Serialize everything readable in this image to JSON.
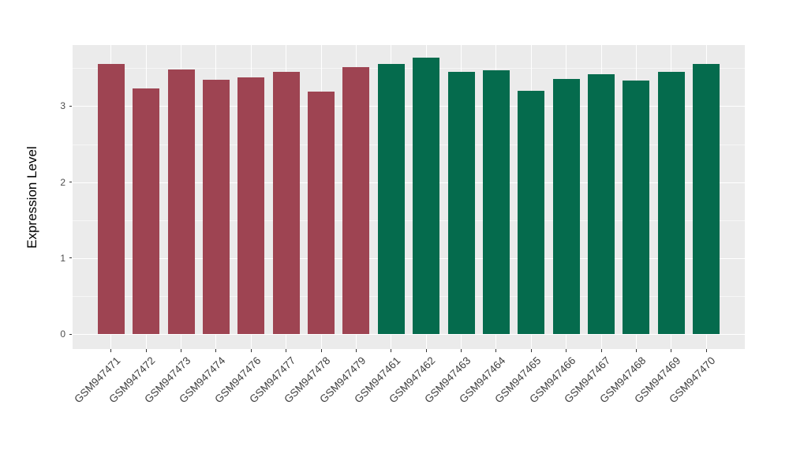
{
  "chart_data": {
    "type": "bar",
    "title": "",
    "xlabel": "",
    "ylabel": "Expression Level",
    "categories": [
      "GSM947471",
      "GSM947472",
      "GSM947473",
      "GSM947474",
      "GSM947476",
      "GSM947477",
      "GSM947478",
      "GSM947479",
      "GSM947461",
      "GSM947462",
      "GSM947463",
      "GSM947464",
      "GSM947465",
      "GSM947466",
      "GSM947467",
      "GSM947468",
      "GSM947469",
      "GSM947470"
    ],
    "values": [
      3.56,
      3.23,
      3.48,
      3.35,
      3.38,
      3.45,
      3.19,
      3.51,
      3.55,
      3.64,
      3.45,
      3.47,
      3.2,
      3.36,
      3.42,
      3.34,
      3.45,
      3.56
    ],
    "bar_colors": [
      "#9E4452",
      "#9E4452",
      "#9E4452",
      "#9E4452",
      "#9E4452",
      "#9E4452",
      "#9E4452",
      "#9E4452",
      "#056B4D",
      "#056B4D",
      "#056B4D",
      "#056B4D",
      "#056B4D",
      "#056B4D",
      "#056B4D",
      "#056B4D",
      "#056B4D",
      "#056B4D"
    ],
    "yticks": [
      "0",
      "1",
      "2",
      "3"
    ],
    "ylim": [
      0,
      3.8
    ],
    "grid": "on",
    "legend": "none",
    "colors": {
      "panel_background": "#EBEBEB",
      "gridline": "#FFFFFF",
      "tick_mark": "#333333",
      "tick_label": "#4D4D4D",
      "axis_title": "#000000",
      "group1_bar": "#9E4452",
      "group2_bar": "#056B4D"
    }
  }
}
